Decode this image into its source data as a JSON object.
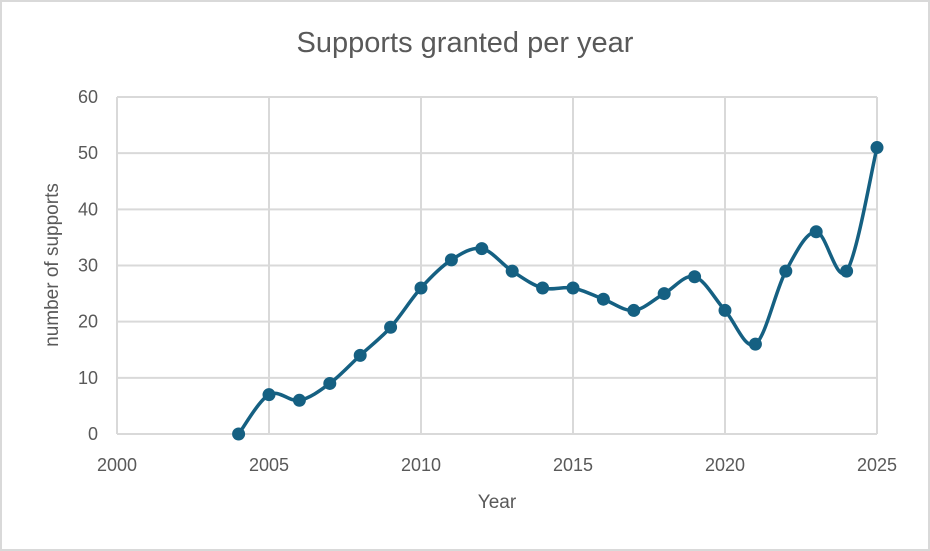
{
  "chart_data": {
    "type": "line",
    "title": "Supports granted per year",
    "xlabel": "Year",
    "ylabel": "number of supports",
    "xlim": [
      2000,
      2025
    ],
    "ylim": [
      0,
      60
    ],
    "x_ticks": [
      2000,
      2005,
      2010,
      2015,
      2020,
      2025
    ],
    "y_ticks": [
      0,
      10,
      20,
      30,
      40,
      50,
      60
    ],
    "grid": true,
    "legend": null,
    "smoothed": true,
    "markers": true,
    "series": [
      {
        "name": "Supports granted",
        "color": "#156082",
        "x": [
          2004,
          2005,
          2006,
          2007,
          2008,
          2009,
          2010,
          2011,
          2012,
          2013,
          2014,
          2015,
          2016,
          2017,
          2018,
          2019,
          2020,
          2021,
          2022,
          2023,
          2024,
          2025
        ],
        "values": [
          0,
          7,
          6,
          9,
          14,
          19,
          26,
          31,
          33,
          29,
          26,
          26,
          24,
          22,
          25,
          28,
          22,
          16,
          29,
          36,
          29,
          51
        ]
      }
    ]
  },
  "colors": {
    "series": "#156082",
    "grid": "#d9d9d9",
    "text": "#595959",
    "border": "#d9d9d9"
  }
}
